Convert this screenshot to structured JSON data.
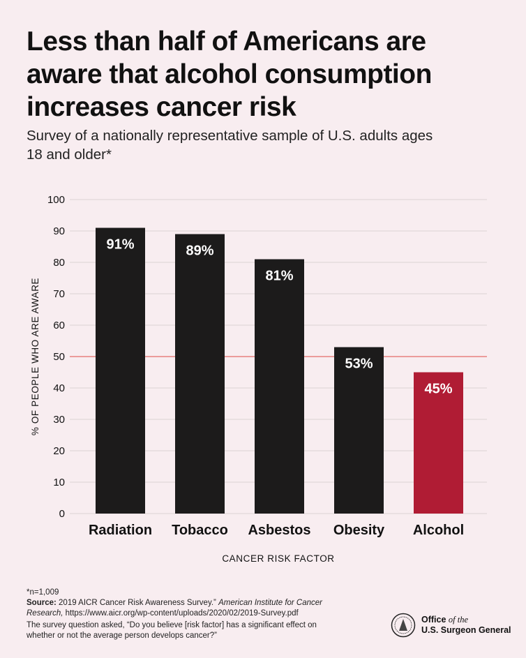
{
  "title": "Less than half of Americans are aware that alcohol consumption increases cancer risk",
  "subtitle": "Survey of a nationally representative sample of U.S. adults ages 18 and older*",
  "chart_data": {
    "type": "bar",
    "categories": [
      "Radiation",
      "Tobacco",
      "Asbestos",
      "Obesity",
      "Alcohol"
    ],
    "values": [
      91,
      89,
      81,
      53,
      45
    ],
    "data_labels": [
      "91%",
      "89%",
      "81%",
      "53%",
      "45%"
    ],
    "xlabel": "CANCER RISK FACTOR",
    "ylabel": "% OF PEOPLE WHO ARE AWARE",
    "ylim": [
      0,
      100
    ],
    "yticks": [
      0,
      10,
      20,
      30,
      40,
      50,
      60,
      70,
      80,
      90,
      100
    ],
    "grid": true,
    "reference_line": 50,
    "colors": {
      "default": "#1c1b1b",
      "highlight": "#b01c34",
      "reference_line": "#e8827f",
      "grid": "#dcd2d5"
    },
    "highlight_category": "Alcohol"
  },
  "footnotes": {
    "n": "*n=1,009",
    "source_label": "Source:",
    "source_text": "2019 AICR Cancer Risk Awareness Survey.”",
    "source_italic": "American Institute for Cancer Research,",
    "source_url": "https://www.aicr.org/wp-content/uploads/2020/02/2019-Survey.pdf",
    "question": "The survey question asked, “Do you believe [risk factor] has a significant effect on whether or not the average person develops cancer?”"
  },
  "logo": {
    "line1": "Office",
    "line1_italic": "of the",
    "line2": "U.S. Surgeon General"
  }
}
